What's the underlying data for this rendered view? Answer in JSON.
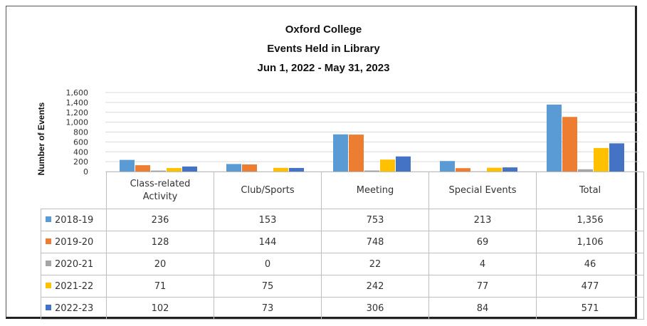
{
  "chart_data": {
    "type": "bar",
    "title_lines": [
      "Oxford College",
      "Events Held in Library",
      "Jun 1, 2022 - May 31, 2023"
    ],
    "ylabel": "Number of Events",
    "ylim": [
      0,
      1600
    ],
    "yticks": [
      "0",
      "200",
      "400",
      "600",
      "800",
      "1,000",
      "1,200",
      "1,400",
      "1,600"
    ],
    "grid": true,
    "legend": "data-table",
    "categories": [
      "Class-related Activity",
      "Club/Sports",
      "Meeting",
      "Special Events",
      "Total"
    ],
    "series": [
      {
        "name": "2018-19",
        "color": "#5b9bd5",
        "values": [
          236,
          153,
          753,
          213,
          1356
        ],
        "labels": [
          "236",
          "153",
          "753",
          "213",
          "1,356"
        ]
      },
      {
        "name": "2019-20",
        "color": "#ed7d31",
        "values": [
          128,
          144,
          748,
          69,
          1106
        ],
        "labels": [
          "128",
          "144",
          "748",
          "69",
          "1,106"
        ]
      },
      {
        "name": "2020-21",
        "color": "#a5a5a5",
        "values": [
          20,
          0,
          22,
          4,
          46
        ],
        "labels": [
          "20",
          "0",
          "22",
          "4",
          "46"
        ]
      },
      {
        "name": "2021-22",
        "color": "#ffc000",
        "values": [
          71,
          75,
          242,
          77,
          477
        ],
        "labels": [
          "71",
          "75",
          "242",
          "77",
          "477"
        ]
      },
      {
        "name": "2022-23",
        "color": "#4472c4",
        "values": [
          102,
          73,
          306,
          84,
          571
        ],
        "labels": [
          "102",
          "73",
          "306",
          "84",
          "571"
        ]
      }
    ]
  }
}
